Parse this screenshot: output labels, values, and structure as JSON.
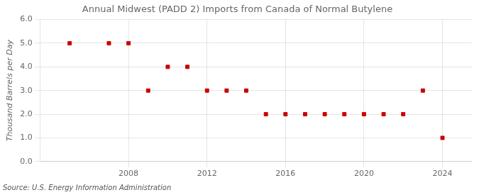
{
  "chart_data": {
    "type": "scatter",
    "title": "Annual Midwest (PADD 2) Imports from Canada of Normal Butylene",
    "ylabel": "Thousand Barrels per Day",
    "source": "Source: U.S. Energy Information Administration",
    "x": [
      2005,
      2006,
      2007,
      2008,
      2009,
      2010,
      2011,
      2012,
      2013,
      2014,
      2015,
      2016,
      2017,
      2018,
      2019,
      2020,
      2021,
      2022,
      2023,
      2024
    ],
    "values": [
      5.0,
      null,
      5.0,
      5.0,
      3.0,
      4.0,
      4.0,
      3.0,
      3.0,
      3.0,
      2.0,
      2.0,
      2.0,
      2.0,
      2.0,
      2.0,
      2.0,
      2.0,
      3.0,
      1.0
    ],
    "color": "#cc0000",
    "marker": "square",
    "xlim": [
      2003.5,
      2025.5
    ],
    "xticks": [
      2008,
      2012,
      2016,
      2020,
      2024
    ],
    "ylim": [
      0.0,
      6.0
    ],
    "yticks": [
      {
        "value": 0,
        "label": "0.0"
      },
      {
        "value": 1,
        "label": "1.0"
      },
      {
        "value": 2,
        "label": "2.0"
      },
      {
        "value": 3,
        "label": "3.0"
      },
      {
        "value": 4,
        "label": "4.0"
      },
      {
        "value": 5,
        "label": "5.0"
      },
      {
        "value": 6,
        "label": "6.0"
      }
    ],
    "grid": true
  }
}
